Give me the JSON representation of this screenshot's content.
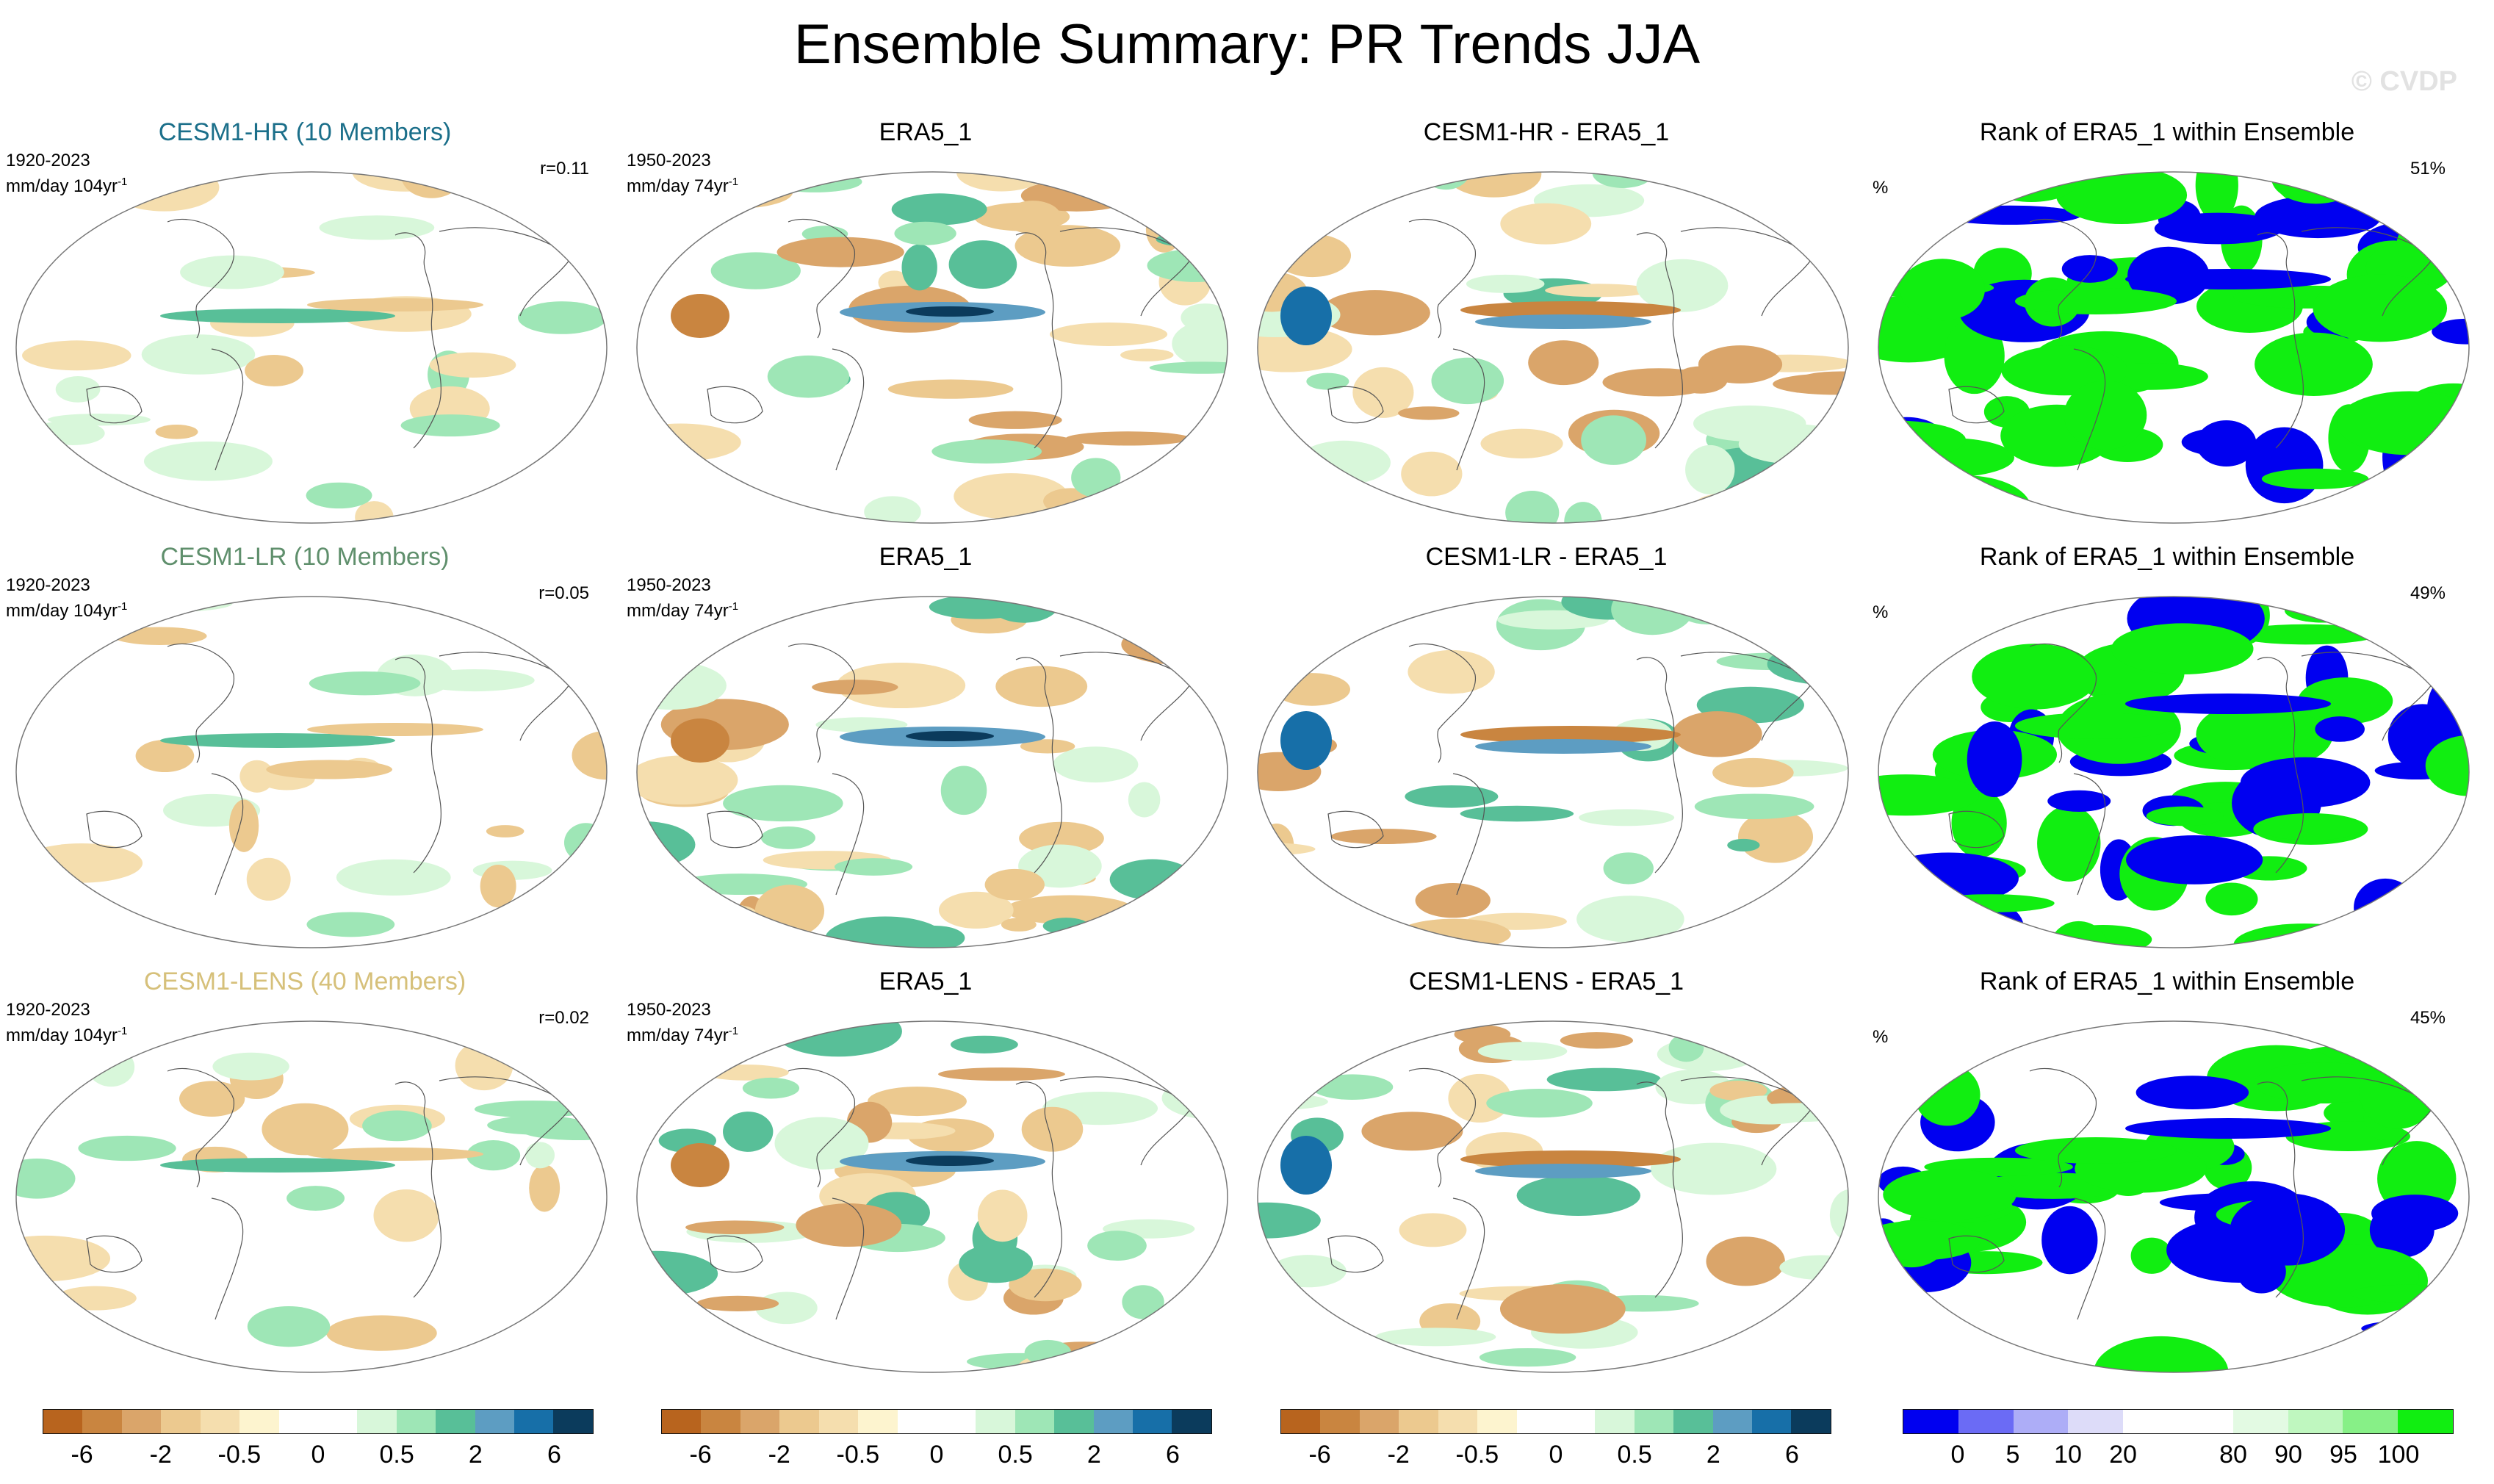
{
  "title": "Ensemble Summary: PR Trends JJA",
  "watermark": "© CVDP",
  "rows": [
    {
      "model": {
        "title": "CESM1-HR (10 Members)",
        "title_color": "#1b6f8a",
        "period": "1920-2023",
        "units_prefix": "mm/day 104yr",
        "units_sup": "-1",
        "r_value": "r=0.11"
      },
      "obs": {
        "title": "ERA5_1",
        "period": "1950-2023",
        "units_prefix": "mm/day 74yr",
        "units_sup": "-1"
      },
      "diff": {
        "title": "CESM1-HR - ERA5_1"
      },
      "rank": {
        "title": "Rank of ERA5_1 within Ensemble",
        "percent_symbol": "%",
        "percent_value": "51%"
      }
    },
    {
      "model": {
        "title": "CESM1-LR (10 Members)",
        "title_color": "#5f8f6c",
        "period": "1920-2023",
        "units_prefix": "mm/day 104yr",
        "units_sup": "-1",
        "r_value": "r=0.05"
      },
      "obs": {
        "title": "ERA5_1",
        "period": "1950-2023",
        "units_prefix": "mm/day 74yr",
        "units_sup": "-1"
      },
      "diff": {
        "title": "CESM1-LR - ERA5_1"
      },
      "rank": {
        "title": "Rank of ERA5_1 within Ensemble",
        "percent_symbol": "%",
        "percent_value": "49%"
      }
    },
    {
      "model": {
        "title": "CESM1-LENS (40 Members)",
        "title_color": "#d6c07a",
        "period": "1920-2023",
        "units_prefix": "mm/day 104yr",
        "units_sup": "-1",
        "r_value": "r=0.02"
      },
      "obs": {
        "title": "ERA5_1",
        "period": "1950-2023",
        "units_prefix": "mm/day 74yr",
        "units_sup": "-1"
      },
      "diff": {
        "title": "CESM1-LENS - ERA5_1"
      },
      "rank": {
        "title": "Rank of ERA5_1 within Ensemble",
        "percent_symbol": "%",
        "percent_value": "45%"
      }
    }
  ],
  "colorbars": {
    "trend": {
      "colors": [
        "#b8641e",
        "#c98540",
        "#daa56a",
        "#ecc98f",
        "#f5deae",
        "#fdf4cf",
        "#ffffff",
        "#ffffff",
        "#d8f7da",
        "#9ee6b6",
        "#58bf98",
        "#5d9dc2",
        "#176fa8",
        "#0b3b5c"
      ],
      "ticks": [
        {
          "label": "-6",
          "idx": 1
        },
        {
          "label": "-2",
          "idx": 3
        },
        {
          "label": "-0.5",
          "idx": 5
        },
        {
          "label": "0",
          "idx": 7
        },
        {
          "label": "0.5",
          "idx": 9
        },
        {
          "label": "2",
          "idx": 11
        },
        {
          "label": "6",
          "idx": 13
        }
      ]
    },
    "rank": {
      "colors": [
        "#0000f0",
        "#6b6bf5",
        "#adadf7",
        "#dddcf9",
        "#ffffff",
        "#ffffff",
        "#e3fae3",
        "#bff7bf",
        "#87f087",
        "#11ee11"
      ],
      "ticks": [
        {
          "label": "0",
          "idx": 1
        },
        {
          "label": "5",
          "idx": 2
        },
        {
          "label": "10",
          "idx": 3
        },
        {
          "label": "20",
          "idx": 4
        },
        {
          "label": "80",
          "idx": 6
        },
        {
          "label": "90",
          "idx": 7
        },
        {
          "label": "95",
          "idx": 8
        },
        {
          "label": "100",
          "idx": 9
        }
      ]
    }
  }
}
